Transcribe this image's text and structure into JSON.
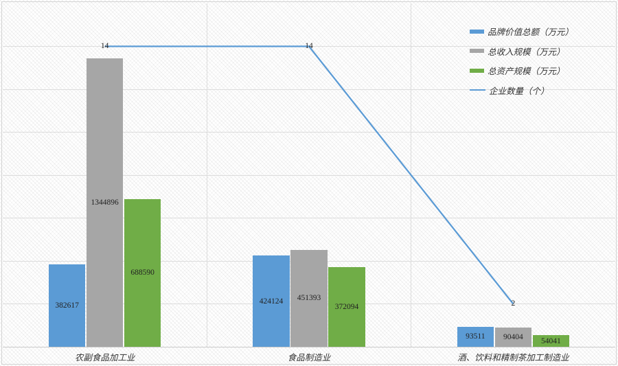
{
  "chart_data": {
    "type": "combo",
    "title": "",
    "xlabel": "",
    "ylabel": "",
    "categories": [
      "农副食品加工业",
      "食品制造业",
      "酒、饮料和精制茶加工制造业"
    ],
    "series": [
      {
        "name": "品牌价值总额（万元）",
        "type": "bar",
        "color": "#5B9BD5",
        "axis": "left",
        "values": [
          382617,
          424124,
          93511
        ]
      },
      {
        "name": "总收入规模（万元）",
        "type": "bar",
        "color": "#A6A6A6",
        "axis": "left",
        "values": [
          1344896,
          451393,
          90404
        ]
      },
      {
        "name": "总资产规模（万元）",
        "type": "bar",
        "color": "#70AD47",
        "axis": "left",
        "values": [
          688590,
          372094,
          54041
        ]
      },
      {
        "name": "企业数量（个）",
        "type": "line",
        "color": "#5B9BD5",
        "axis": "right",
        "values": [
          14,
          14,
          2
        ]
      }
    ],
    "axes": {
      "left": {
        "min": 0,
        "max": 1600000,
        "tick_labels_visible": false
      },
      "right": {
        "min": 0,
        "max": 16,
        "tick_labels_visible": false
      }
    },
    "gridlines": {
      "horizontal_divisions": 8,
      "vertical_category_separators": true,
      "color": "#dcdcdc"
    },
    "value_labels": "shown on all bars and line points",
    "legend": {
      "position": "top-right",
      "orientation": "vertical"
    },
    "plot_background": "light diagonal crosshatch pattern on white"
  }
}
